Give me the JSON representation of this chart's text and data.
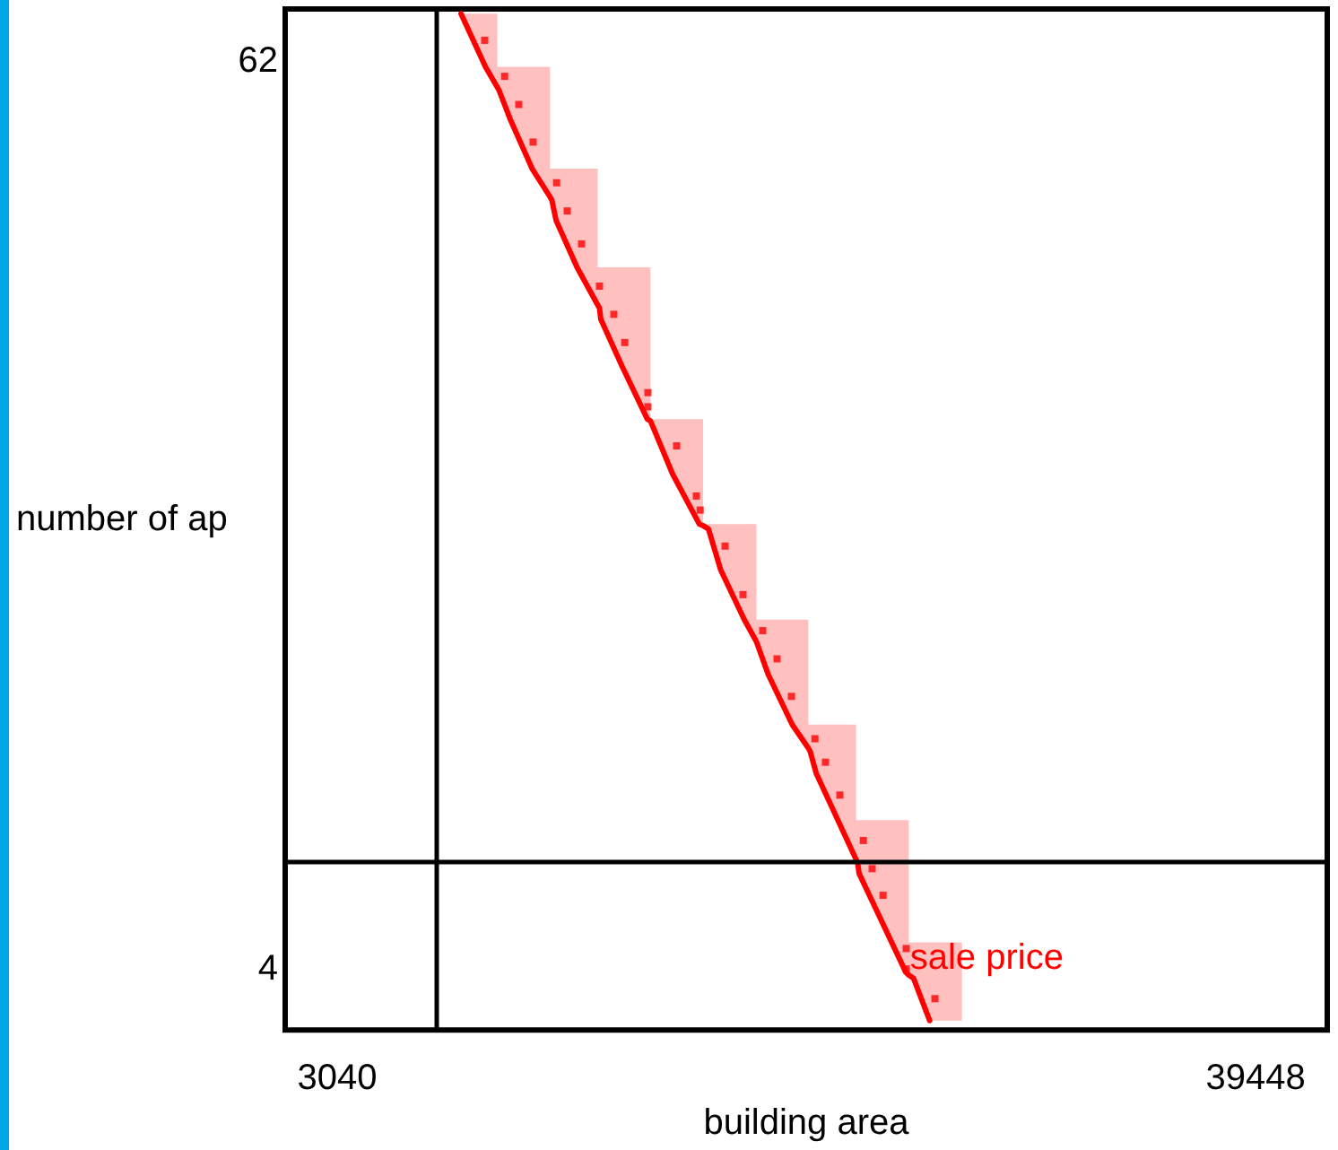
{
  "chart_data": {
    "type": "line",
    "xlabel": "building area",
    "ylabel": "number of ap",
    "xlim": [
      980,
      42290
    ],
    "ylim": [
      0.1,
      65.3
    ],
    "xticks": [
      3040,
      39448
    ],
    "yticks": [
      4,
      62
    ],
    "series": [
      {
        "name": "sale price",
        "color": "#ff0000",
        "marker": "none",
        "line_style": "solid",
        "x": [
          7950,
          8920,
          9390,
          9390,
          9460,
          9890,
          10770,
          11480,
          11480,
          11550,
          11720,
          12550,
          13370,
          13370,
          13440,
          13490,
          14330,
          15340,
          15460,
          15460,
          15510,
          16340,
          17400,
          17550,
          17550,
          17760,
          18240,
          19180,
          19660,
          19660,
          20130,
          21080,
          21720,
          21720,
          21790,
          22030,
          23610,
          23610,
          23680,
          23730,
          25580,
          25700,
          25700,
          25890,
          26530,
          27810
        ],
        "values": [
          65.0,
          61.6,
          60.3,
          60.3,
          60.1,
          58.3,
          55.1,
          53.3,
          53.3,
          53.1,
          51.8,
          48.8,
          46.4,
          46.4,
          46.2,
          45.5,
          42.5,
          39.1,
          39.0,
          39.0,
          39.0,
          35.6,
          32.4,
          32.3,
          32.3,
          32.1,
          29.5,
          26.3,
          24.9,
          24.9,
          22.8,
          19.6,
          18.1,
          18.1,
          17.9,
          16.5,
          11.0,
          11.0,
          10.7,
          10.1,
          3.8,
          3.6,
          3.6,
          3.4,
          0.7,
          null
        ],
        "lower": [
          65.0,
          61.6,
          60.3,
          60.3,
          60.1,
          58.3,
          55.1,
          53.3,
          53.3,
          53.1,
          51.8,
          48.8,
          46.4,
          46.4,
          46.2,
          45.5,
          42.5,
          39.1,
          39.0,
          39.0,
          39.0,
          35.6,
          32.4,
          32.3,
          32.3,
          32.1,
          29.5,
          26.3,
          24.9,
          24.9,
          22.8,
          19.6,
          18.1,
          18.1,
          17.9,
          16.5,
          11.0,
          11.0,
          10.7,
          10.1,
          3.8,
          3.6,
          3.6,
          3.4,
          0.7,
          0.7
        ],
        "upper": [
          65.0,
          65.0,
          65.0,
          61.6,
          61.6,
          61.6,
          61.6,
          61.6,
          55.1,
          55.1,
          55.1,
          55.1,
          55.1,
          48.8,
          48.8,
          48.8,
          48.8,
          48.8,
          48.8,
          39.1,
          39.1,
          39.1,
          39.1,
          39.1,
          32.4,
          32.4,
          32.4,
          32.4,
          32.4,
          26.3,
          26.3,
          26.3,
          26.3,
          19.6,
          19.6,
          19.6,
          19.6,
          13.5,
          13.5,
          13.5,
          13.5,
          13.5,
          5.7,
          5.7,
          5.7,
          5.7
        ]
      },
      {
        "type": "scatter",
        "color": "#ff0000",
        "marker": "square",
        "x": [
          8890,
          9680,
          10240,
          10810,
          11740,
          12160,
          12730,
          13440,
          14010,
          14440,
          15360,
          15360,
          16500,
          17280,
          17430,
          18420,
          19130,
          19910,
          20480,
          21050,
          21980,
          22400,
          22970,
          23900,
          24250,
          24680,
          25600,
          25600,
          26740
        ],
        "values": [
          63.3,
          61.0,
          59.2,
          56.8,
          54.2,
          52.4,
          50.3,
          47.6,
          45.8,
          44.0,
          40.8,
          39.9,
          37.4,
          34.2,
          33.3,
          31.0,
          27.9,
          25.6,
          23.8,
          21.4,
          18.7,
          17.2,
          15.1,
          12.2,
          10.4,
          8.7,
          5.3,
          4.0,
          2.1
        ]
      }
    ],
    "ref_lines": [
      {
        "axis": "x",
        "value": 7000,
        "color": "#000000",
        "line_style": "solid"
      },
      {
        "axis": "y",
        "value": 10.8,
        "color": "#000000",
        "line_style": "solid"
      }
    ]
  }
}
